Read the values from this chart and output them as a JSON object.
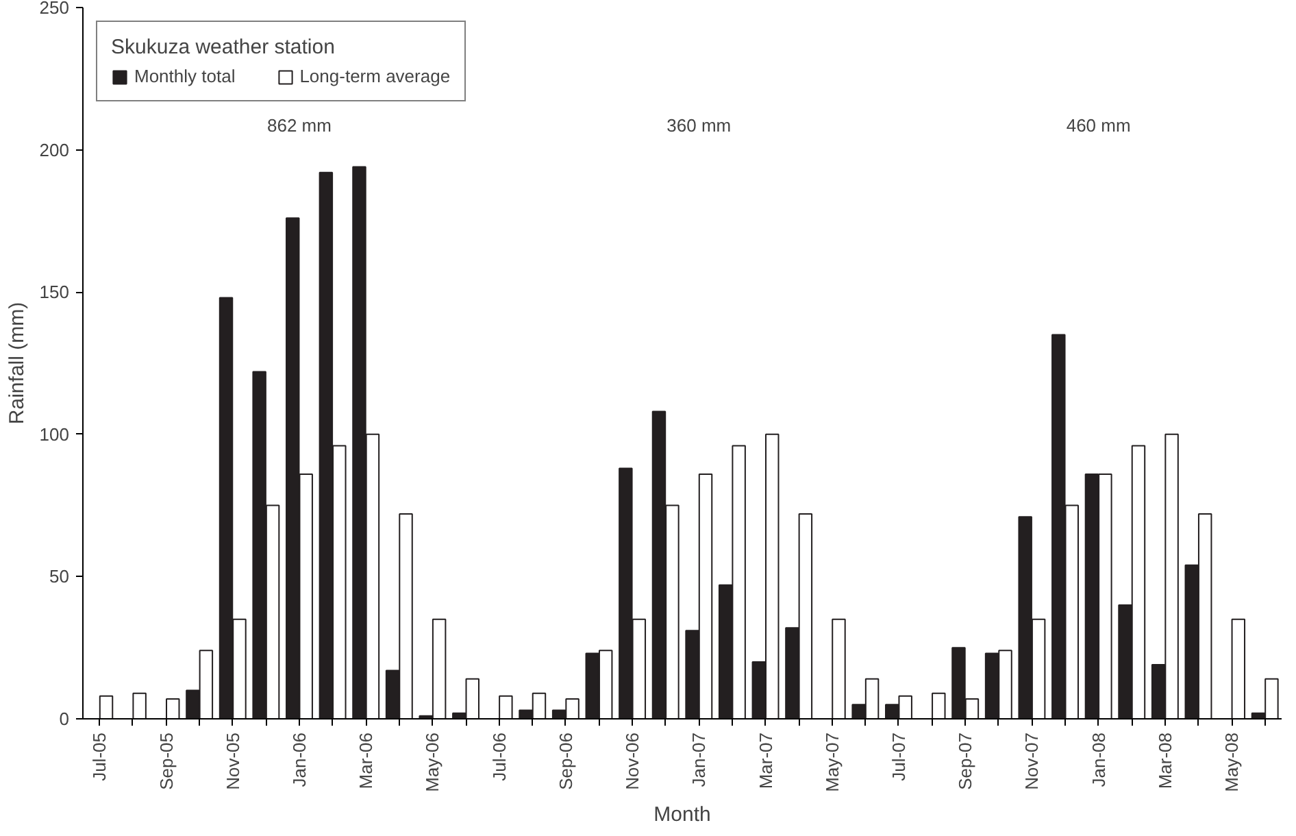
{
  "chart_data": {
    "type": "bar",
    "xlabel": "Month",
    "ylabel": "Rainfall (mm)",
    "legend_title": "Skukuza weather station",
    "legend": "top left",
    "grid": false,
    "categories": [
      "Jul-05",
      null,
      "Sep-05",
      null,
      "Nov-05",
      null,
      "Jan-06",
      null,
      "Mar-06",
      null,
      "May-06",
      null,
      "Jul-06",
      null,
      "Sep-06",
      null,
      "Nov-06",
      null,
      "Jan-07",
      null,
      "Mar-07",
      null,
      "May-07",
      null,
      "Jul-07",
      null,
      "Sep-07",
      null,
      "Nov-07",
      null,
      "Jan-08",
      null,
      "Mar-08",
      null,
      "May-08",
      null
    ],
    "ylim": [
      0,
      250
    ],
    "yticks": [
      0,
      50,
      100,
      150,
      200,
      250
    ],
    "series": [
      {
        "name": "Monthly total",
        "color": "#231f20",
        "values": [
          0,
          0,
          0,
          10,
          148,
          122,
          176,
          192,
          194,
          17,
          1,
          2,
          0,
          3,
          3,
          23,
          88,
          108,
          31,
          47,
          20,
          32,
          0,
          5,
          5,
          0,
          25,
          23,
          71,
          135,
          86,
          40,
          19,
          54,
          0,
          2
        ]
      },
      {
        "name": "Long-term average",
        "color": "#ffffff",
        "values": [
          8,
          9,
          7,
          24,
          35,
          75,
          86,
          96,
          100,
          72,
          35,
          14,
          8,
          9,
          7,
          24,
          35,
          75,
          86,
          96,
          100,
          72,
          35,
          14,
          8,
          9,
          7,
          24,
          35,
          75,
          86,
          96,
          100,
          72,
          35,
          14
        ]
      }
    ],
    "annotations": [
      "862 mm",
      "360 mm",
      "460 mm"
    ]
  }
}
